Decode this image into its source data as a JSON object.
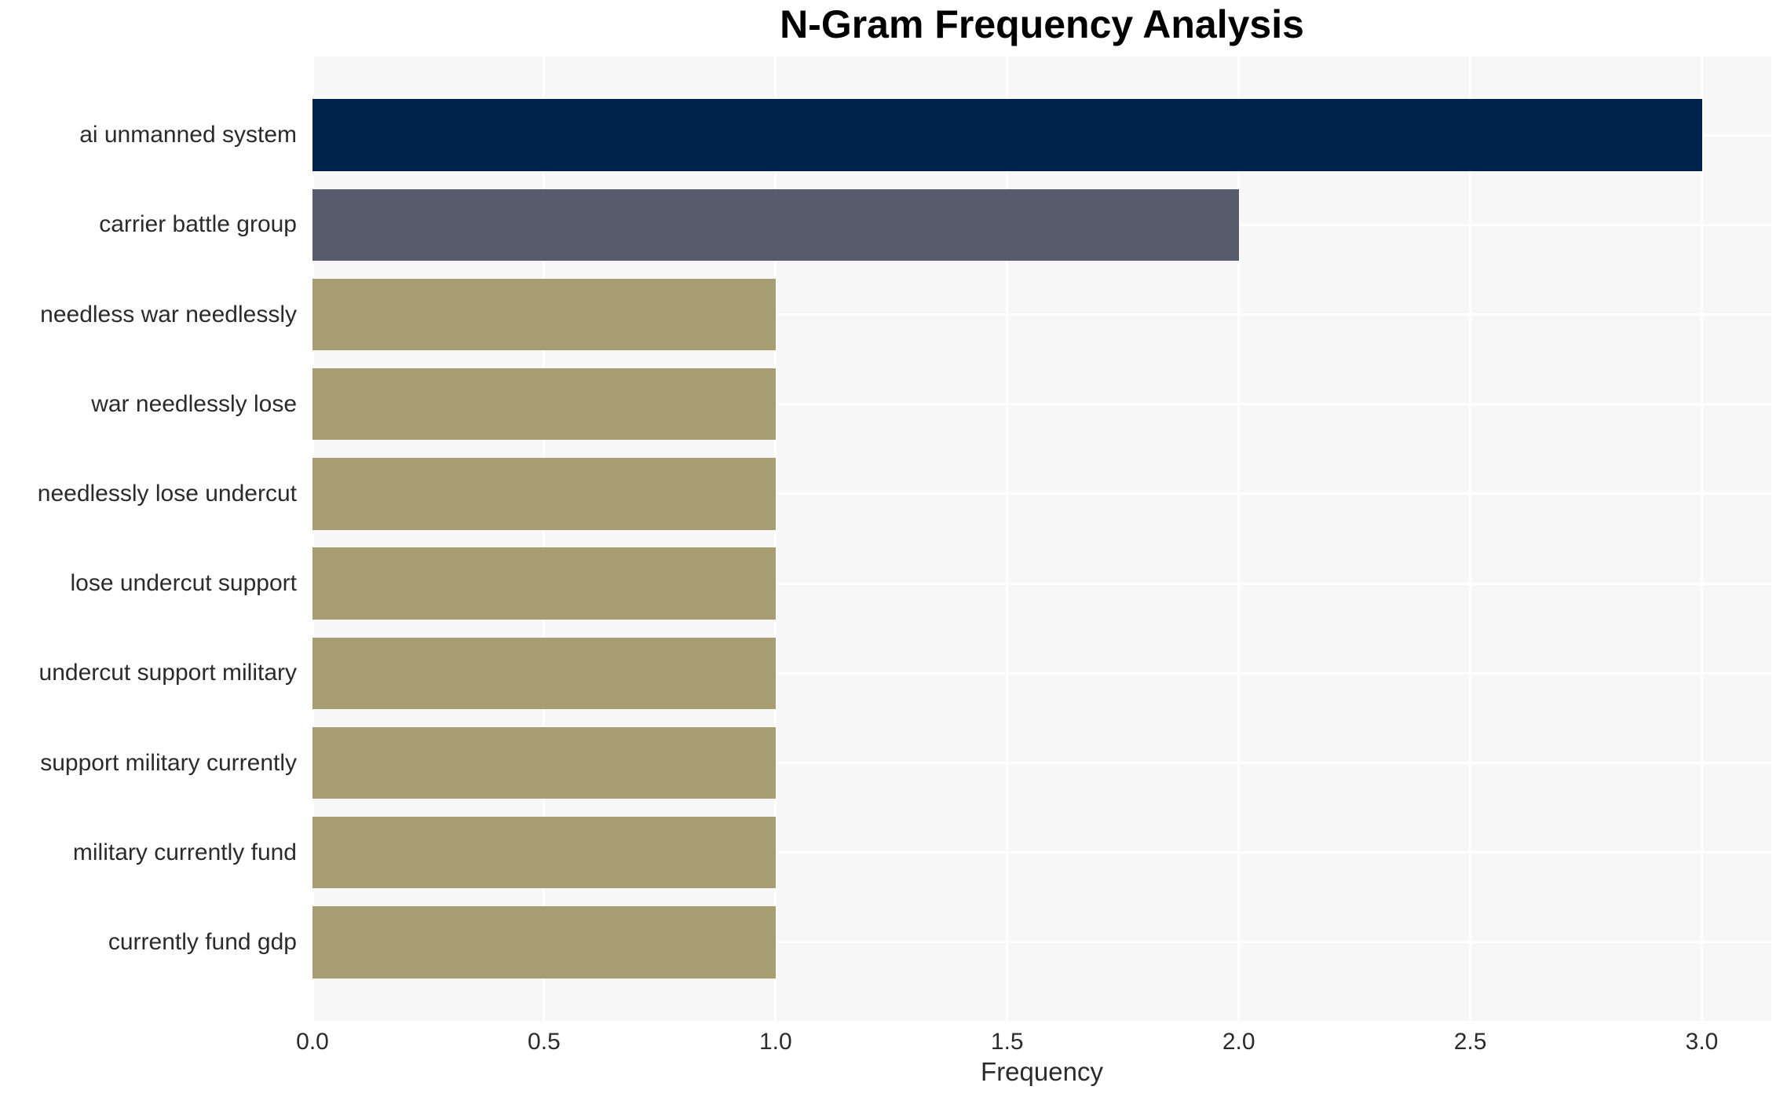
{
  "chart_data": {
    "type": "bar",
    "orientation": "horizontal",
    "title": "N-Gram Frequency Analysis",
    "xlabel": "Frequency",
    "ylabel": "",
    "categories": [
      "ai unmanned system",
      "carrier battle group",
      "needless war needlessly",
      "war needlessly lose",
      "needlessly lose undercut",
      "lose undercut support",
      "undercut support military",
      "support military currently",
      "military currently fund",
      "currently fund gdp"
    ],
    "values": [
      3,
      2,
      1,
      1,
      1,
      1,
      1,
      1,
      1,
      1
    ],
    "bar_colors": [
      "#00234d",
      "#565c6b",
      "#a69d72",
      "#a69d72",
      "#a69d72",
      "#a69d72",
      "#a69d72",
      "#a69d72",
      "#a69d72",
      "#a69d72"
    ],
    "xticks": [
      0.0,
      0.5,
      1.0,
      1.5,
      2.0,
      2.5,
      3.0
    ],
    "xtick_labels": [
      "0.0",
      "0.5",
      "1.0",
      "1.5",
      "2.0",
      "2.5",
      "3.0"
    ],
    "xlim": [
      0,
      3.15
    ],
    "grid": true,
    "legend": null,
    "colors": {
      "plot_background": "#f7f7f7",
      "grid_color": "#ffffff",
      "text_color": "#2b2b2b",
      "title_color": "#000000"
    }
  }
}
